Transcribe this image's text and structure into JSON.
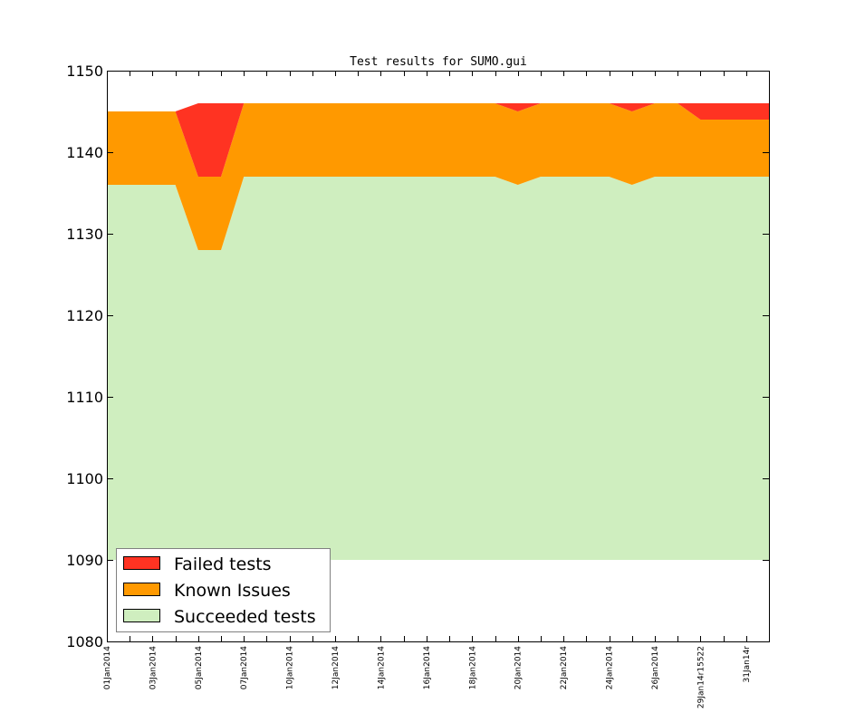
{
  "chart_data": {
    "type": "area",
    "title": "Test results for SUMO.gui",
    "xlabel": "",
    "ylabel": "",
    "ylim": [
      1080,
      1150
    ],
    "yticks": [
      1080,
      1090,
      1100,
      1110,
      1120,
      1130,
      1140,
      1150
    ],
    "stacked": true,
    "baseline": 1090,
    "grid": false,
    "legend_position": "lower-left",
    "x_tick_labels": [
      "01Jan2014",
      "03Jan2014",
      "05Jan2014",
      "07Jan2014",
      "10Jan2014",
      "12Jan2014",
      "14Jan2014",
      "16Jan2014",
      "18Jan2014",
      "20Jan2014",
      "22Jan2014",
      "24Jan2014",
      "26Jan2014",
      "29Jan14r15522",
      "31Jan14r"
    ],
    "series": [
      {
        "name": "Succeeded tests",
        "color": "#cfeebf",
        "cumulative": [
          1136,
          1136,
          1136,
          1136,
          1128,
          1128,
          1137,
          1137,
          1137,
          1137,
          1137,
          1137,
          1137,
          1137,
          1137,
          1137,
          1137,
          1137,
          1136,
          1137,
          1137,
          1137,
          1137,
          1136,
          1137,
          1137,
          1137,
          1137,
          1137,
          1137
        ]
      },
      {
        "name": "Known Issues",
        "color": "#ff9900",
        "cumulative": [
          1145,
          1145,
          1145,
          1145,
          1137,
          1137,
          1146,
          1146,
          1146,
          1146,
          1146,
          1146,
          1146,
          1146,
          1146,
          1146,
          1146,
          1146,
          1145,
          1146,
          1146,
          1146,
          1146,
          1145,
          1146,
          1146,
          1144,
          1144,
          1144,
          1144
        ]
      },
      {
        "name": "Failed tests",
        "color": "#ff3322",
        "cumulative": [
          1145,
          1145,
          1145,
          1145,
          1146,
          1146,
          1146,
          1146,
          1146,
          1146,
          1146,
          1146,
          1146,
          1146,
          1146,
          1146,
          1146,
          1146,
          1146,
          1146,
          1146,
          1146,
          1146,
          1146,
          1146,
          1146,
          1146,
          1146,
          1146,
          1146
        ]
      }
    ],
    "legend_entries": [
      "Failed tests",
      "Known Issues",
      "Succeeded tests"
    ]
  }
}
